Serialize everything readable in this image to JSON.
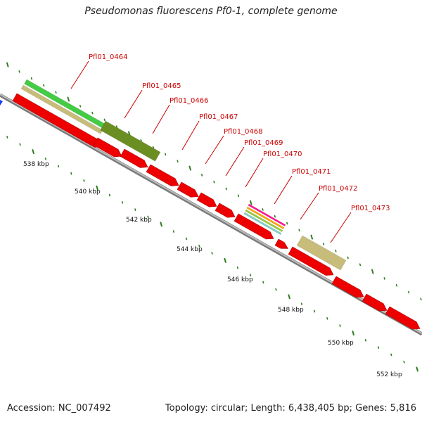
{
  "title": "Pseudomonas fluorescens Pf0-1, complete genome",
  "footer": {
    "accession": "Accession: NC_007492",
    "summary": "Topology: circular; Length: 6,438,405 bp; Genes: 5,816"
  },
  "colors": {
    "backbone": "#9a9a9a",
    "cds": "#ee0000",
    "feature_green": "#44cc44",
    "feature_olive": "#6b8e23",
    "feature_khaki": "#c8bc7a",
    "label": "#cc0000",
    "tick": "#2e7d1e"
  },
  "scale_labels": [
    "538 kbp",
    "540 kbp",
    "542 kbp",
    "544 kbp",
    "546 kbp",
    "548 kbp",
    "550 kbp",
    "552 kbp"
  ],
  "gene_labels": [
    "Pfl01_0464",
    "Pfl01_0465",
    "Pfl01_0466",
    "Pfl01_0467",
    "Pfl01_0468",
    "Pfl01_0469",
    "Pfl01_0470",
    "Pfl01_0471",
    "Pfl01_0472",
    "Pfl01_0473"
  ]
}
